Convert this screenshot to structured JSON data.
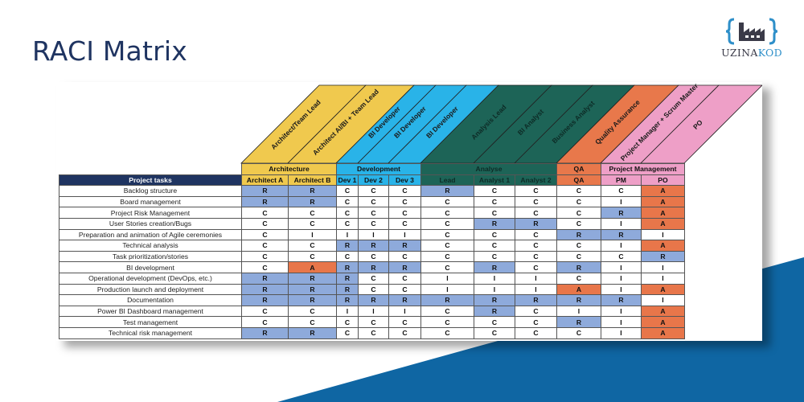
{
  "page": {
    "title": "RACI Matrix",
    "logo": {
      "text_part1": "UZINA",
      "text_part2": "KOD",
      "icon": "factory-braces-icon"
    }
  },
  "colors": {
    "title": "#1f3461",
    "architecture": "#f0c94e",
    "development": "#29b3e8",
    "analyse": "#1d6457",
    "qa": "#e8784b",
    "project_management": "#ee9fc7",
    "responsible": "#8eaadb",
    "accountable": "#e8764a",
    "tasks_header": "#1f3461",
    "background_wedge": "#0f66a3"
  },
  "matrix": {
    "tasks_header": "Project tasks",
    "role_titles": [
      "Architect/Team Lead",
      "Architect AI/BI + Team Lead",
      "BI Developer",
      "BI Developer",
      "BI Developer",
      "Analysis Lead",
      "BI Analyst",
      "Business Analyst",
      "Quality Assurance",
      "Project Manager + Scrum Master",
      "PO"
    ],
    "groups": [
      {
        "label": "Architecture",
        "span": 2
      },
      {
        "label": "Development",
        "span": 3
      },
      {
        "label": "Analyse",
        "span": 3
      },
      {
        "label": "QA",
        "span": 1
      },
      {
        "label": "Project Management",
        "span": 2
      }
    ],
    "columns": [
      "Architect A",
      "Architect B",
      "Dev 1",
      "Dev 2",
      "Dev 3",
      "Lead",
      "Analyst 1",
      "Analyst 2",
      "QA",
      "PM",
      "PO"
    ],
    "rows": [
      {
        "task": "Backlog structure",
        "values": [
          "R",
          "R",
          "C",
          "C",
          "C",
          "R",
          "C",
          "C",
          "C",
          "C",
          "A"
        ]
      },
      {
        "task": "Board management",
        "values": [
          "R",
          "R",
          "C",
          "C",
          "C",
          "C",
          "C",
          "C",
          "C",
          "I",
          "A"
        ]
      },
      {
        "task": "Project Risk Management",
        "values": [
          "C",
          "C",
          "C",
          "C",
          "C",
          "C",
          "C",
          "C",
          "C",
          "R",
          "A"
        ]
      },
      {
        "task": "User Stories creation/Bugs",
        "values": [
          "C",
          "C",
          "C",
          "C",
          "C",
          "C",
          "R",
          "R",
          "C",
          "I",
          "A"
        ]
      },
      {
        "task": "Preparation and animation of Agile ceremonies",
        "values": [
          "C",
          "I",
          "I",
          "I",
          "I",
          "C",
          "C",
          "C",
          "R",
          "R",
          "I"
        ]
      },
      {
        "task": "Technical analysis",
        "values": [
          "C",
          "C",
          "R",
          "R",
          "R",
          "C",
          "C",
          "C",
          "C",
          "I",
          "A"
        ]
      },
      {
        "task": "Task prioritization/stories",
        "values": [
          "C",
          "C",
          "C",
          "C",
          "C",
          "C",
          "C",
          "C",
          "C",
          "C",
          "R"
        ]
      },
      {
        "task": "BI development",
        "values": [
          "C",
          "A",
          "R",
          "R",
          "R",
          "C",
          "R",
          "C",
          "R",
          "I",
          "I"
        ]
      },
      {
        "task": "Operational development (DevOps, etc.)",
        "values": [
          "R",
          "R",
          "R",
          "C",
          "C",
          "I",
          "I",
          "I",
          "C",
          "I",
          "I"
        ]
      },
      {
        "task": "Production launch and deployment",
        "values": [
          "R",
          "R",
          "R",
          "C",
          "C",
          "I",
          "I",
          "I",
          "A",
          "I",
          "A"
        ]
      },
      {
        "task": "Documentation",
        "values": [
          "R",
          "R",
          "R",
          "R",
          "R",
          "R",
          "R",
          "R",
          "R",
          "R",
          "I"
        ]
      },
      {
        "task": "Power BI Dashboard management",
        "values": [
          "C",
          "C",
          "I",
          "I",
          "I",
          "C",
          "R",
          "C",
          "I",
          "I",
          "A"
        ]
      },
      {
        "task": "Test management",
        "values": [
          "C",
          "C",
          "C",
          "C",
          "C",
          "C",
          "C",
          "C",
          "R",
          "I",
          "A"
        ]
      },
      {
        "task": "Technical risk management",
        "values": [
          "R",
          "R",
          "C",
          "C",
          "C",
          "C",
          "C",
          "C",
          "C",
          "I",
          "A"
        ]
      }
    ]
  }
}
